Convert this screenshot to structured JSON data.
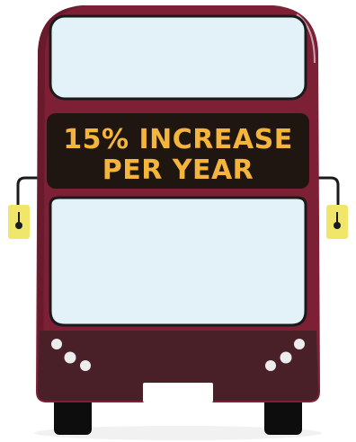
{
  "sign": {
    "line1": "15% INCREASE",
    "line2": "PER YEAR"
  },
  "colors": {
    "body": "#7d1f35",
    "body_shadow": "#6a1a2d",
    "grille": "#4a2028",
    "window_fill": "#e2f2f8",
    "outline": "#1a1a1a",
    "sign_bg": "#1f1612",
    "sign_text": "#f5b43a",
    "mirror": "#f0e66a",
    "headlight": "#ececec",
    "plate": "#ffffff",
    "tyre": "#0d0d0d"
  }
}
